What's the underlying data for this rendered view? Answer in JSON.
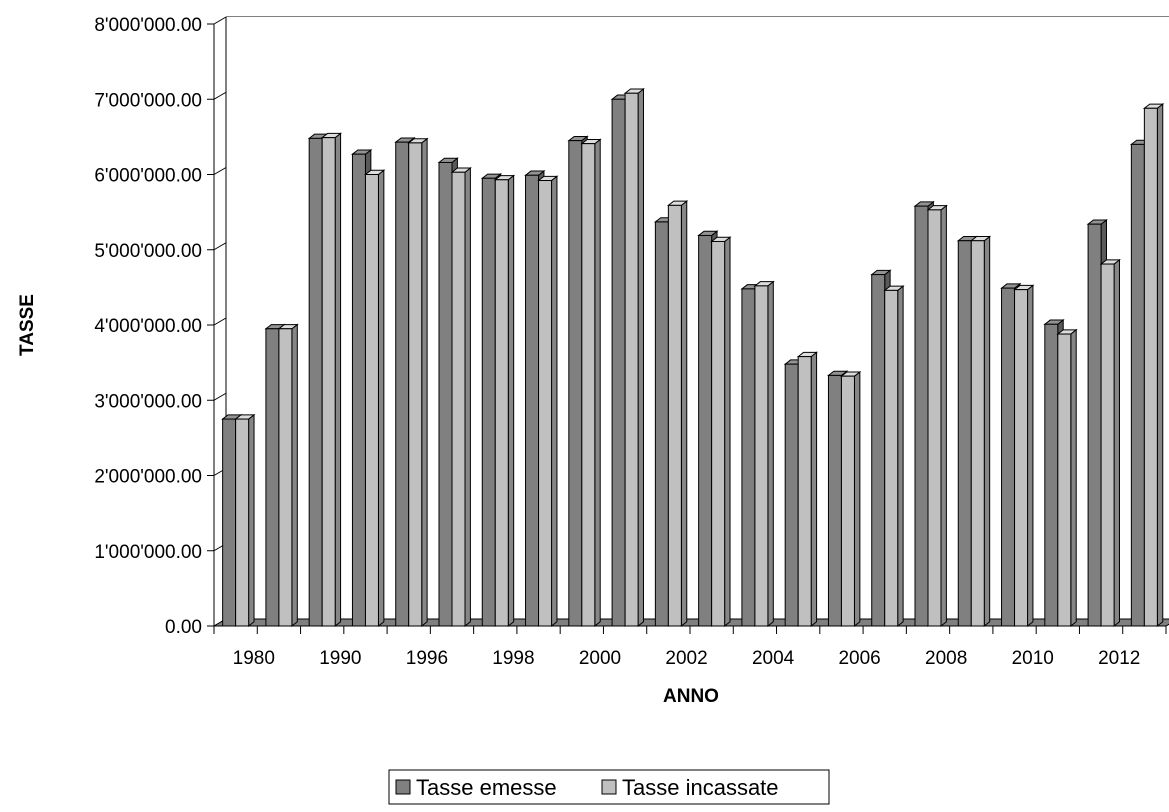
{
  "chart_data": {
    "type": "bar",
    "xlabel": "ANNO",
    "ylabel": "TASSE",
    "ylim": [
      0,
      8000000
    ],
    "y_tick_step": 1000000,
    "y_tick_labels": [
      "0.00",
      "1'000'000.00",
      "2'000'000.00",
      "3'000'000.00",
      "4'000'000.00",
      "5'000'000.00",
      "6'000'000.00",
      "7'000'000.00",
      "8'000'000.00"
    ],
    "categories": [
      "1980",
      "",
      "1990",
      "",
      "1996",
      "",
      "1998",
      "",
      "2000",
      "",
      "2002",
      "",
      "2004",
      "",
      "2006",
      "",
      "2008",
      "",
      "2010",
      "",
      "2012",
      ""
    ],
    "series": [
      {
        "name": "Tasse emesse",
        "color": "#808080",
        "values": [
          2750000,
          3950000,
          6480000,
          6270000,
          6430000,
          6160000,
          5950000,
          5990000,
          6450000,
          7000000,
          5370000,
          5190000,
          4480000,
          3480000,
          3330000,
          4670000,
          5580000,
          5120000,
          4490000,
          4010000,
          5340000,
          6400000
        ]
      },
      {
        "name": "Tasse incassate",
        "color": "#c0c0c0",
        "values": [
          2750000,
          3950000,
          6490000,
          6000000,
          6420000,
          6030000,
          5930000,
          5920000,
          6410000,
          7080000,
          5590000,
          5110000,
          4520000,
          3580000,
          3320000,
          4460000,
          5530000,
          5120000,
          4470000,
          3880000,
          4810000,
          6880000
        ]
      }
    ],
    "legend_position": "bottom",
    "grid": true
  }
}
